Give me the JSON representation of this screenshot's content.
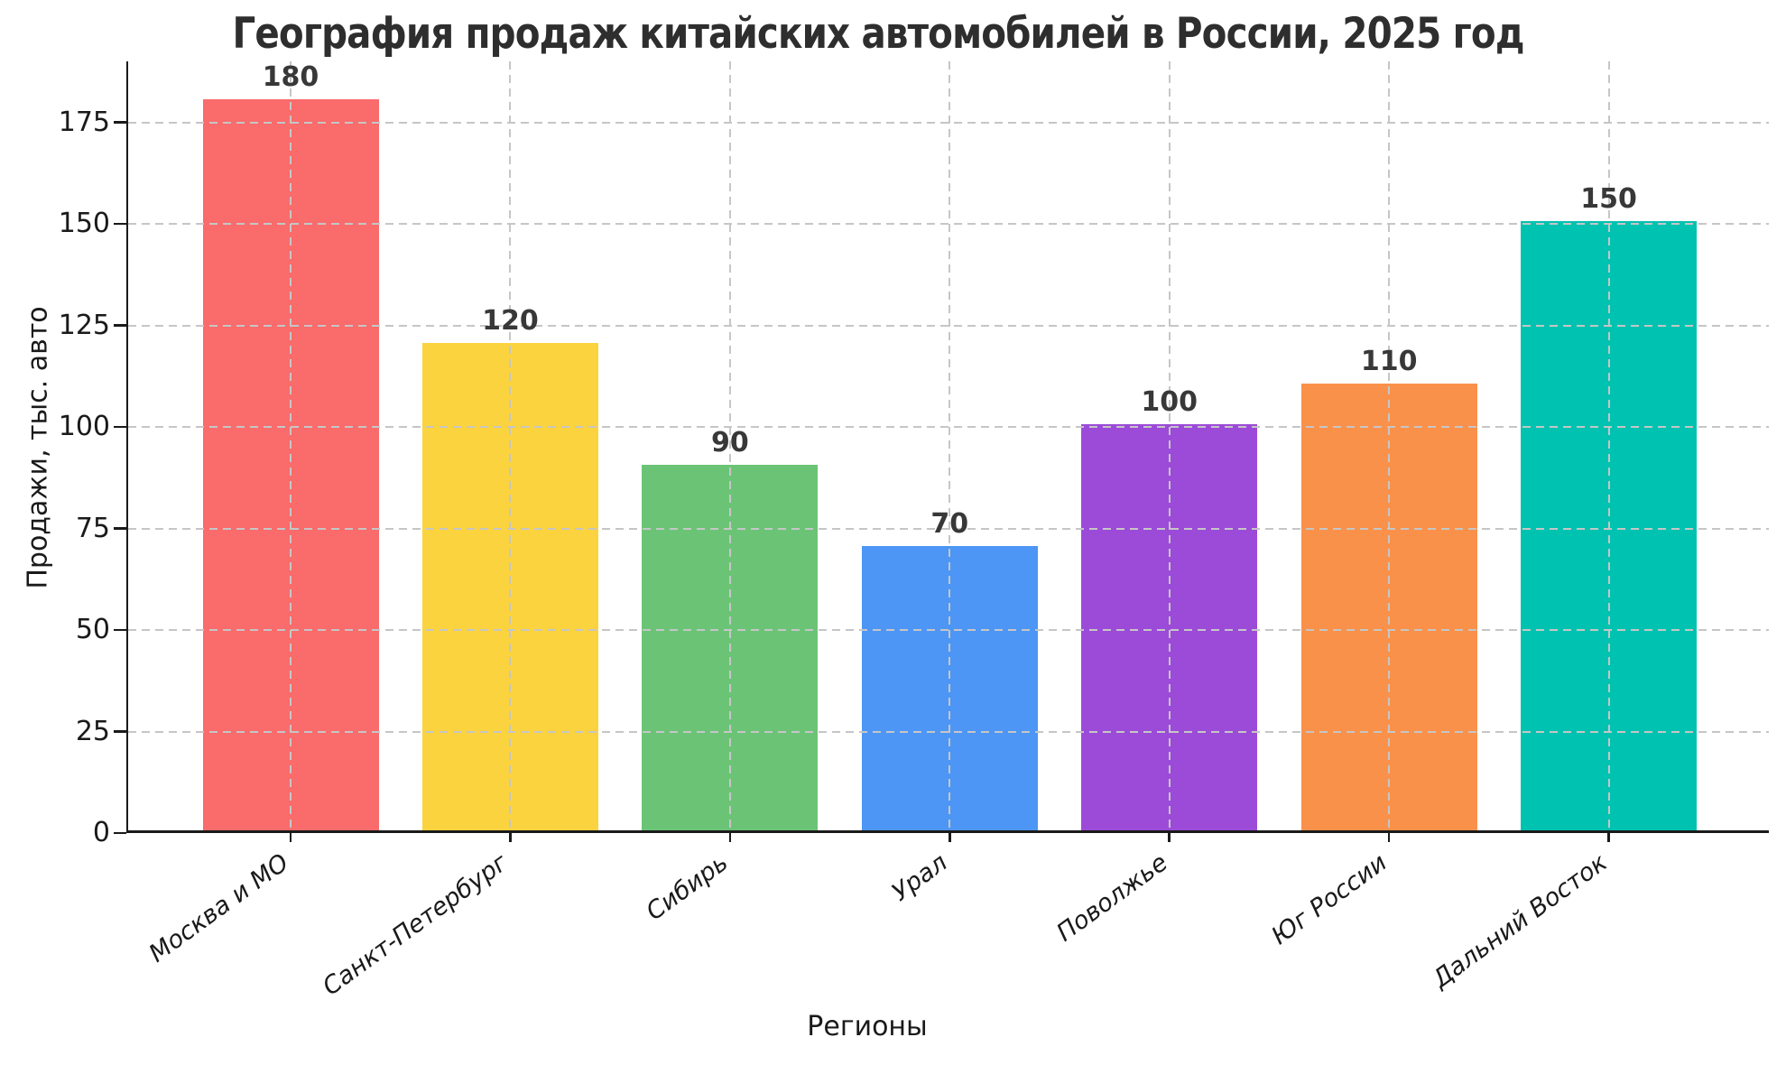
{
  "chart_data": {
    "type": "bar",
    "title": "География продаж китайских автомобилей в России, 2025 год",
    "xlabel": "Регионы",
    "ylabel": "Продажи, тыс. авто",
    "categories": [
      "Москва и МО",
      "Санкт-Петербург",
      "Сибирь",
      "Урал",
      "Поволжье",
      "Юг России",
      "Дальний Восток"
    ],
    "values": [
      180,
      120,
      90,
      70,
      100,
      110,
      150
    ],
    "value_labels": [
      "180",
      "120",
      "90",
      "70",
      "100",
      "110",
      "150"
    ],
    "bar_colors": [
      "#fa6b6b",
      "#fbd33e",
      "#6bc476",
      "#4d96f5",
      "#9c4bd9",
      "#f9914a",
      "#00c2b0"
    ],
    "yticks": [
      0,
      25,
      50,
      75,
      100,
      125,
      150,
      175
    ],
    "ylim": [
      0,
      190
    ],
    "grid": "dashed, both axes, drawn over bars",
    "gridline_color": "#c6c6c6",
    "axis_color": "#1a1a1a",
    "tick_label_rotation_deg": 36,
    "legend": "none"
  }
}
